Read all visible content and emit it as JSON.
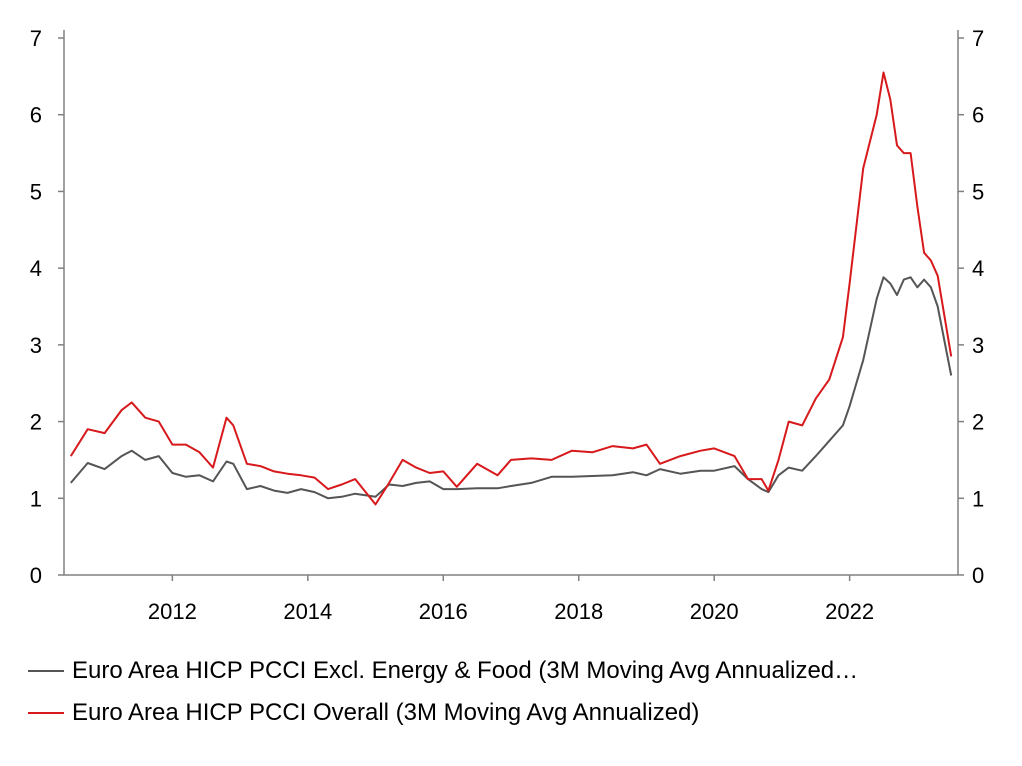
{
  "chart_data": {
    "type": "line",
    "title": "",
    "xlabel": "",
    "ylabel": "",
    "xlim": [
      2010.4,
      2023.6
    ],
    "ylim": [
      0,
      7
    ],
    "y_ticks": [
      "0",
      "1",
      "2",
      "3",
      "4",
      "5",
      "6",
      "7"
    ],
    "x_ticks": [
      "2012",
      "2014",
      "2016",
      "2018",
      "2020",
      "2022"
    ],
    "dual_y_axis": true,
    "grid": false,
    "legend_position": "bottom",
    "series": [
      {
        "name": "Euro Area HICP PCCI Excl. Energy & Food (3M Moving Avg Annualized…",
        "color": "#555555",
        "x": [
          2010.5,
          2010.75,
          2011.0,
          2011.25,
          2011.4,
          2011.6,
          2011.8,
          2012.0,
          2012.2,
          2012.4,
          2012.6,
          2012.8,
          2012.9,
          2013.1,
          2013.3,
          2013.5,
          2013.7,
          2013.9,
          2014.1,
          2014.3,
          2014.5,
          2014.7,
          2015.0,
          2015.2,
          2015.4,
          2015.6,
          2015.8,
          2016.0,
          2016.2,
          2016.5,
          2016.8,
          2017.0,
          2017.3,
          2017.6,
          2017.9,
          2018.2,
          2018.5,
          2018.8,
          2019.0,
          2019.2,
          2019.5,
          2019.8,
          2020.0,
          2020.3,
          2020.5,
          2020.7,
          2020.8,
          2020.95,
          2021.1,
          2021.3,
          2021.5,
          2021.7,
          2021.9,
          2022.0,
          2022.2,
          2022.4,
          2022.5,
          2022.6,
          2022.7,
          2022.8,
          2022.9,
          2023.0,
          2023.1,
          2023.2,
          2023.3,
          2023.5
        ],
        "values": [
          1.2,
          1.46,
          1.38,
          1.55,
          1.62,
          1.5,
          1.55,
          1.33,
          1.28,
          1.3,
          1.22,
          1.48,
          1.45,
          1.12,
          1.16,
          1.1,
          1.07,
          1.12,
          1.08,
          1.0,
          1.02,
          1.06,
          1.02,
          1.18,
          1.16,
          1.2,
          1.22,
          1.12,
          1.12,
          1.13,
          1.13,
          1.16,
          1.2,
          1.28,
          1.28,
          1.29,
          1.3,
          1.34,
          1.3,
          1.38,
          1.32,
          1.36,
          1.36,
          1.42,
          1.25,
          1.12,
          1.08,
          1.3,
          1.4,
          1.36,
          1.55,
          1.75,
          1.95,
          2.2,
          2.8,
          3.6,
          3.88,
          3.8,
          3.65,
          3.85,
          3.88,
          3.75,
          3.85,
          3.75,
          3.5,
          2.6
        ]
      },
      {
        "name": "Euro Area HICP PCCI Overall (3M Moving Avg Annualized)",
        "color": "#d7191c",
        "x": [
          2010.5,
          2010.75,
          2011.0,
          2011.25,
          2011.4,
          2011.6,
          2011.8,
          2012.0,
          2012.2,
          2012.4,
          2012.6,
          2012.8,
          2012.9,
          2013.1,
          2013.3,
          2013.5,
          2013.7,
          2013.9,
          2014.1,
          2014.3,
          2014.5,
          2014.7,
          2015.0,
          2015.2,
          2015.4,
          2015.6,
          2015.8,
          2016.0,
          2016.2,
          2016.5,
          2016.8,
          2017.0,
          2017.3,
          2017.6,
          2017.9,
          2018.2,
          2018.5,
          2018.8,
          2019.0,
          2019.2,
          2019.5,
          2019.8,
          2020.0,
          2020.3,
          2020.5,
          2020.7,
          2020.8,
          2020.95,
          2021.1,
          2021.3,
          2021.5,
          2021.7,
          2021.9,
          2022.0,
          2022.2,
          2022.4,
          2022.5,
          2022.6,
          2022.7,
          2022.8,
          2022.9,
          2023.0,
          2023.1,
          2023.2,
          2023.3,
          2023.5
        ],
        "values": [
          1.55,
          1.9,
          1.85,
          2.15,
          2.25,
          2.05,
          2.0,
          1.7,
          1.7,
          1.6,
          1.4,
          2.05,
          1.95,
          1.45,
          1.42,
          1.35,
          1.32,
          1.3,
          1.27,
          1.12,
          1.18,
          1.25,
          0.92,
          1.2,
          1.5,
          1.4,
          1.33,
          1.35,
          1.15,
          1.45,
          1.3,
          1.5,
          1.52,
          1.5,
          1.62,
          1.6,
          1.68,
          1.65,
          1.7,
          1.45,
          1.55,
          1.62,
          1.65,
          1.55,
          1.25,
          1.25,
          1.1,
          1.5,
          2.0,
          1.95,
          2.3,
          2.55,
          3.1,
          3.8,
          5.3,
          6.0,
          6.55,
          6.2,
          5.6,
          5.5,
          5.5,
          4.8,
          4.2,
          4.1,
          3.9,
          2.85
        ]
      }
    ]
  }
}
